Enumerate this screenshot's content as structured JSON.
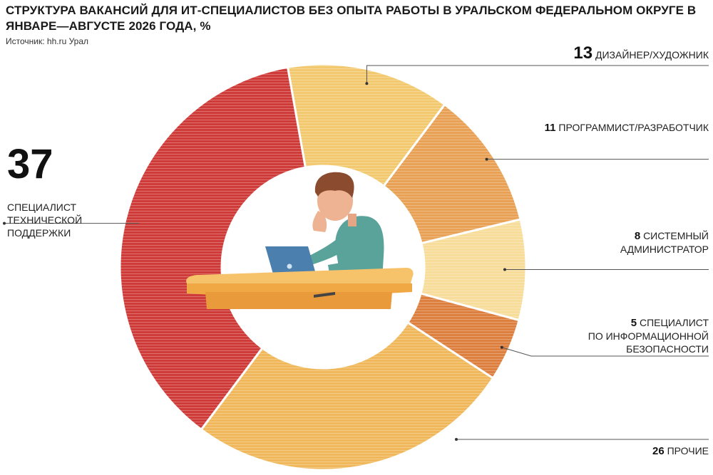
{
  "title": "СТРУКТУРА ВАКАНСИЙ ДЛЯ ИТ-СПЕЦИАЛИСТОВ БЕЗ ОПЫТА РАБОТЫ В УРАЛЬСКОМ ФЕДЕРАЛЬНОМ ОКРУГЕ В ЯНВАРЕ—АВГУСТЕ 2026 ГОДА, %",
  "source": "Источник: hh.ru Урал",
  "chart_data": {
    "type": "pie",
    "title": "СТРУКТУРА ВАКАНСИЙ ДЛЯ ИТ-СПЕЦИАЛИСТОВ БЕЗ ОПЫТА РАБОТЫ В УРАЛЬСКОМ ФЕДЕРАЛЬНОМ ОКРУГЕ В ЯНВАРЕ—АВГУСТЕ 2026 ГОДА, %",
    "variant": "donut",
    "unit": "%",
    "start_angle_deg": -10,
    "direction": "clockwise",
    "slices": [
      {
        "label": "ДИЗАЙНЕР/ХУДОЖНИК",
        "value": 13,
        "color": "#f3c970"
      },
      {
        "label": "ПРОГРАММИСТ/РАЗРАБОТЧИК",
        "value": 11,
        "color": "#e8a155"
      },
      {
        "label": "СИСТЕМНЫЙ АДМИНИСТРАТОР",
        "value": 8,
        "color": "#f7dc9a"
      },
      {
        "label": "СПЕЦИАЛИСТ ПО ИНФОРМАЦИОННОЙ БЕЗОПАСНОСТИ",
        "value": 5,
        "color": "#dd7f3f"
      },
      {
        "label": "ПРОЧИЕ",
        "value": 26,
        "color": "#f0b85b"
      },
      {
        "label": "СПЕЦИАЛИСТ ТЕХНИЧЕСКОЙ ПОДДЕРЖКИ",
        "value": 37,
        "color": "#cf3b38"
      }
    ]
  },
  "labels": {
    "designer": {
      "num": "13",
      "text": "ДИЗАЙНЕР/ХУДОЖНИК"
    },
    "programmer": {
      "num": "11",
      "text": "ПРОГРАММИСТ/РАЗРАБОТЧИК"
    },
    "sysadmin": {
      "num": "8",
      "text1": "СИСТЕМНЫЙ",
      "text2": "АДМИНИСТРАТОР"
    },
    "security": {
      "num": "5",
      "text1": "СПЕЦИАЛИСТ",
      "text2": "ПО ИНФОРМАЦИОННОЙ",
      "text3": "БЕЗОПАСНОСТИ"
    },
    "other": {
      "num": "26",
      "text": "ПРОЧИЕ"
    },
    "support": {
      "num": "37",
      "text1": "СПЕЦИАЛИСТ",
      "text2": "ТЕХНИЧЕСКОЙ",
      "text3": "ПОДДЕРЖКИ"
    }
  },
  "illustration": {
    "name": "person-at-laptop-illustration"
  }
}
